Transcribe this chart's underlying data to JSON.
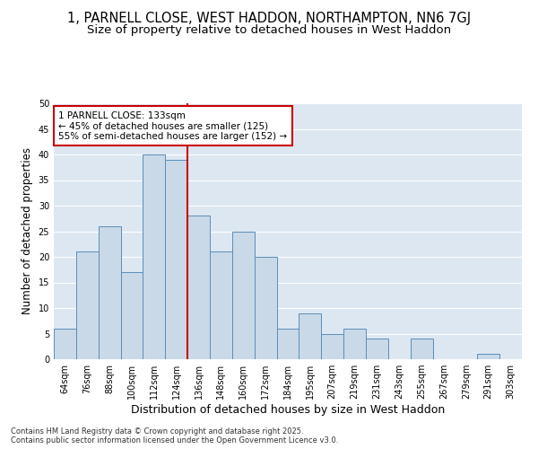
{
  "title_line1": "1, PARNELL CLOSE, WEST HADDON, NORTHAMPTON, NN6 7GJ",
  "title_line2": "Size of property relative to detached houses in West Haddon",
  "xlabel": "Distribution of detached houses by size in West Haddon",
  "ylabel": "Number of detached properties",
  "categories": [
    "64sqm",
    "76sqm",
    "88sqm",
    "100sqm",
    "112sqm",
    "124sqm",
    "136sqm",
    "148sqm",
    "160sqm",
    "172sqm",
    "184sqm",
    "195sqm",
    "207sqm",
    "219sqm",
    "231sqm",
    "243sqm",
    "255sqm",
    "267sqm",
    "279sqm",
    "291sqm",
    "303sqm"
  ],
  "values": [
    6,
    21,
    26,
    17,
    40,
    39,
    28,
    21,
    25,
    20,
    6,
    9,
    5,
    6,
    4,
    0,
    4,
    0,
    0,
    1,
    0
  ],
  "bar_color": "#c9d9e8",
  "bar_edge_color": "#5b8db8",
  "vline_x": 6.0,
  "vline_color": "#cc0000",
  "annotation_line1": "1 PARNELL CLOSE: 133sqm",
  "annotation_line2": "← 45% of detached houses are smaller (125)",
  "annotation_line3": "55% of semi-detached houses are larger (152) →",
  "annotation_box_edge": "#cc0000",
  "ylim": [
    0,
    50
  ],
  "yticks": [
    0,
    5,
    10,
    15,
    20,
    25,
    30,
    35,
    40,
    45,
    50
  ],
  "background_color": "#dde7f2",
  "footer_text": "Contains HM Land Registry data © Crown copyright and database right 2025.\nContains public sector information licensed under the Open Government Licence v3.0.",
  "title_fontsize": 10.5,
  "subtitle_fontsize": 9.5,
  "xlabel_fontsize": 9,
  "ylabel_fontsize": 8.5,
  "tick_fontsize": 7,
  "annotation_fontsize": 7.5,
  "footer_fontsize": 6
}
